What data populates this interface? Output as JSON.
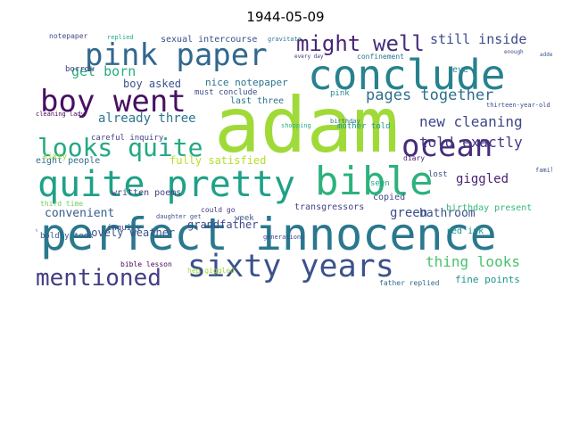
{
  "chart_data": {
    "type": "wordcloud",
    "title": "1944-05-09",
    "colormap": "viridis",
    "words": [
      {
        "text": "adam",
        "color": "#a0da39"
      },
      {
        "text": "perfect innocence",
        "color": "#2a788e"
      },
      {
        "text": "conclude",
        "color": "#26828e"
      },
      {
        "text": "bible",
        "color": "#2db27d"
      },
      {
        "text": "quite pretty",
        "color": "#1fa187"
      },
      {
        "text": "sixty years",
        "color": "#3b528b"
      },
      {
        "text": "pink paper",
        "color": "#31688e"
      },
      {
        "text": "boy went",
        "color": "#471063"
      },
      {
        "text": "ocean",
        "color": "#472d7b"
      },
      {
        "text": "looks quite",
        "color": "#23a983"
      },
      {
        "text": "mentioned",
        "color": "#433e85"
      },
      {
        "text": "might",
        "color": "#482576"
      },
      {
        "text": "well",
        "color": "#472e7c"
      },
      {
        "text": "still inside",
        "color": "#3e4a89"
      },
      {
        "text": "pages together",
        "color": "#2e6e8e"
      },
      {
        "text": "new cleaning",
        "color": "#3f4788"
      },
      {
        "text": "told exactly",
        "color": "#443983"
      },
      {
        "text": "already three",
        "color": "#2a768e"
      },
      {
        "text": "get born",
        "color": "#27ad81"
      },
      {
        "text": "boy asked",
        "color": "#3b528b"
      },
      {
        "text": "nice notepaper",
        "color": "#2c738e"
      },
      {
        "text": "must conclude",
        "color": "#3d4e8a"
      },
      {
        "text": "fully satisfied",
        "color": "#b5de2b"
      },
      {
        "text": "giggled",
        "color": "#481f70"
      },
      {
        "text": "thing looks",
        "color": "#4ac16d"
      },
      {
        "text": "convenient",
        "color": "#365d8d"
      },
      {
        "text": "grandfather",
        "color": "#404688"
      },
      {
        "text": "green",
        "color": "#3e4c8a"
      },
      {
        "text": "bathroom",
        "color": "#3b528b"
      },
      {
        "text": "transgressors",
        "color": "#404588"
      },
      {
        "text": "lovely weather",
        "color": "#3b528b"
      },
      {
        "text": "written poems",
        "color": "#433e85"
      },
      {
        "text": "eight people",
        "color": "#2e6f8e"
      },
      {
        "text": "fine points",
        "color": "#1f958b"
      },
      {
        "text": "birthday present",
        "color": "#35b779"
      },
      {
        "text": "careful inquiry",
        "color": "#414287"
      },
      {
        "text": "sexual intercourse",
        "color": "#3b528b"
      },
      {
        "text": "notepaper",
        "color": "#3e4c8a"
      },
      {
        "text": "last three",
        "color": "#2c728e"
      },
      {
        "text": "copied",
        "color": "#3e4989"
      },
      {
        "text": "red ink",
        "color": "#21918c"
      },
      {
        "text": "generations",
        "color": "#3e4a89"
      },
      {
        "text": "bible lesson",
        "color": "#46085c"
      },
      {
        "text": "mother told",
        "color": "#1f968b"
      },
      {
        "text": "could go",
        "color": "#453781"
      },
      {
        "text": "boldly took",
        "color": "#375b8d"
      },
      {
        "text": "confinement",
        "color": "#2c728e"
      },
      {
        "text": "three generations",
        "color": "#355f8d"
      },
      {
        "text": "father replied",
        "color": "#31688e"
      },
      {
        "text": "daughter get",
        "color": "#3b528b"
      },
      {
        "text": "pink",
        "color": "#24868e"
      },
      {
        "text": "borrow",
        "color": "#44397f"
      },
      {
        "text": "week",
        "color": "#3a548c"
      },
      {
        "text": "inquiry",
        "color": "#3e4c8a"
      },
      {
        "text": "hep giggled",
        "color": "#a2da37"
      },
      {
        "text": "eve",
        "color": "#26828e"
      },
      {
        "text": "third time",
        "color": "#70cf57"
      },
      {
        "text": "sixty",
        "color": "#a5db36"
      },
      {
        "text": "lost",
        "color": "#3b528b"
      },
      {
        "text": "seen",
        "color": "#22a785"
      },
      {
        "text": "diary",
        "color": "#482173"
      },
      {
        "text": "thirteen-year-old",
        "color": "#3e4a89"
      },
      {
        "text": "cleaning lady",
        "color": "#440154"
      },
      {
        "text": "replied",
        "color": "#22a884"
      },
      {
        "text": "gravitate",
        "color": "#2a768e"
      },
      {
        "text": "every day",
        "color": "#453781"
      },
      {
        "text": "enough",
        "color": "#3e4a89"
      },
      {
        "text": "birthday",
        "color": "#2a788e"
      },
      {
        "text": "shopping",
        "color": "#29af7f"
      },
      {
        "text": "family",
        "color": "#3b528b"
      },
      {
        "text": "added",
        "color": "#38598c"
      }
    ]
  }
}
